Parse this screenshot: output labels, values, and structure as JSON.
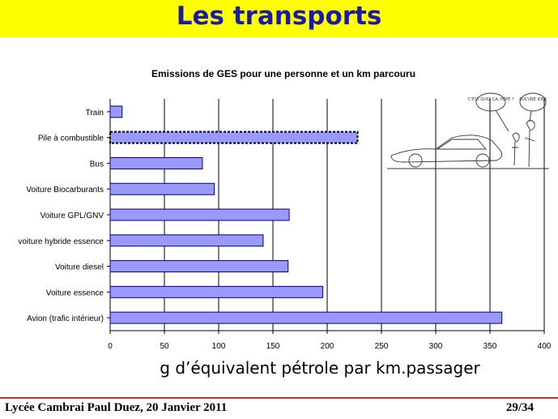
{
  "header": {
    "title": "Les transports"
  },
  "footer": {
    "left": "Lycée Cambrai Paul Duez, 20 Janvier 2011",
    "page": "29/34"
  },
  "cartoon": {
    "bubble_left": "C'EST QUOI ÇA, PÉPÉ ?",
    "bubble_right": "AUCUNE IDÉE"
  },
  "colors": {
    "title_bar": "#ffff00",
    "title_text": "#1a1aa6",
    "bar_fill": "#9999ff",
    "bar_stroke": "#000080",
    "footer_line": "#d03030"
  },
  "chart_data": {
    "type": "bar",
    "orientation": "horizontal",
    "title": "Emissions de GES pour une personne et un km parcouru",
    "xlabel": "g d’équivalent pétrole par km.passager",
    "ylabel": "",
    "categories": [
      "Train",
      "Pile à combustible",
      "Bus",
      "Voiture Biocarburants",
      "Voiture GPL/GNV",
      "voiture hybride essence",
      "Voiture diesel",
      "Voiture essence",
      "Avion (trafic intérieur)"
    ],
    "values": [
      11,
      228,
      85,
      96,
      165,
      141,
      164,
      196,
      361
    ],
    "highlighted_category": "Pile à combustible",
    "xlim": [
      0,
      400
    ],
    "xticks": [
      "0",
      "50",
      "100",
      "150",
      "200",
      "250",
      "300",
      "350",
      "400"
    ],
    "grid": "vertical"
  }
}
